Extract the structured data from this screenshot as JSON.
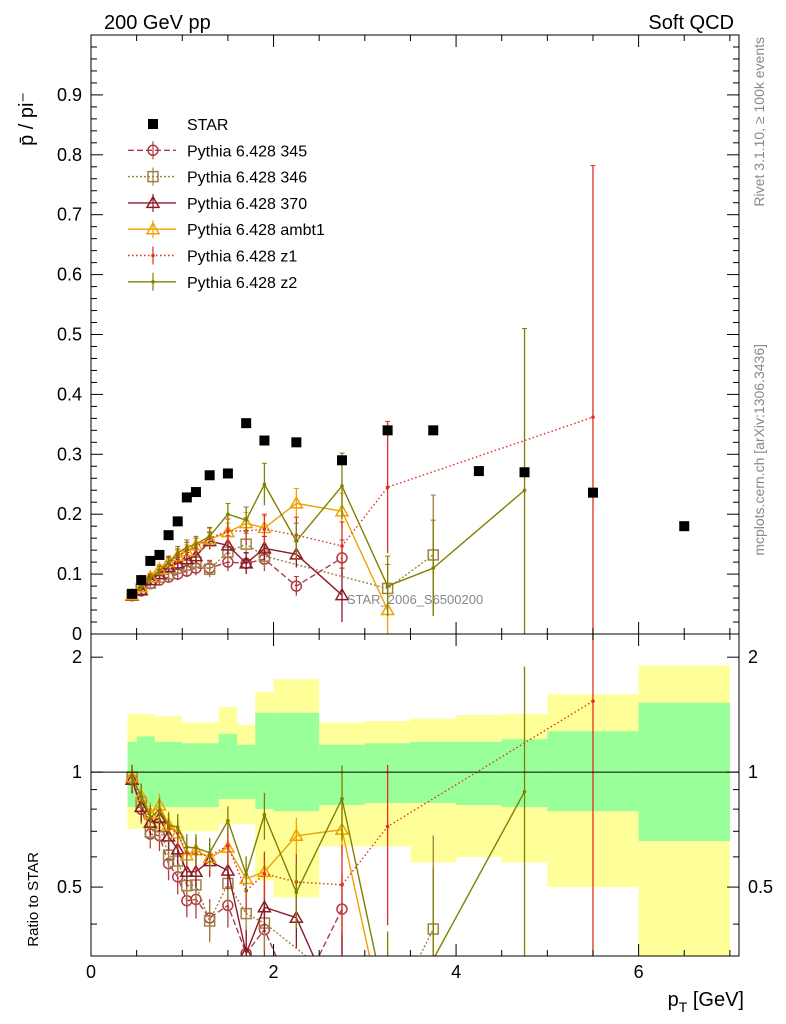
{
  "header": {
    "left": "200 GeV pp",
    "right": "Soft QCD"
  },
  "side_text": {
    "rivet": "Rivet 3.1.10, ≥ 100k events",
    "mcplots": "mcplots.cern.ch [arXiv:1306.3436]"
  },
  "watermark": "STAR_2006_S6500200",
  "axes": {
    "ylabel_top": "p̄ / pi⁻",
    "ylabel_bottom": "Ratio to STAR",
    "xlabel": "p_T [GeV]",
    "x_ticks": [
      "0",
      "2",
      "4",
      "6"
    ],
    "y_ticks_top": [
      "0",
      "0.1",
      "0.2",
      "0.3",
      "0.4",
      "0.5",
      "0.6",
      "0.7",
      "0.8",
      "0.9"
    ],
    "y_ticks_bottom": [
      "0.5",
      "1",
      "2"
    ]
  },
  "colors": {
    "star": "#000000",
    "p345": "#b03a48",
    "p346": "#a08040",
    "p370": "#8b1a2a",
    "ambt1": "#f0a000",
    "z1": "#e03020",
    "z2": "#808000",
    "band_inner": "#99ff99",
    "band_outer": "#ffff99"
  },
  "chart_data": {
    "type": "scatter",
    "xlim": [
      0,
      7.1
    ],
    "ylim_top": [
      0,
      1.0
    ],
    "ylim_bottom": [
      0.33,
      2.3
    ],
    "bottom_log_scale": true,
    "legend_position": "top-left",
    "star": {
      "name": "STAR",
      "x": [
        0.45,
        0.55,
        0.65,
        0.75,
        0.85,
        0.95,
        1.05,
        1.15,
        1.3,
        1.5,
        1.7,
        1.9,
        2.25,
        2.75,
        3.25,
        3.75,
        4.25,
        4.75,
        5.5,
        6.5
      ],
      "y": [
        0.067,
        0.09,
        0.122,
        0.132,
        0.165,
        0.188,
        0.228,
        0.237,
        0.265,
        0.268,
        0.352,
        0.323,
        0.32,
        0.29,
        0.34,
        0.34,
        0.272,
        0.27,
        0.236,
        0.18
      ]
    },
    "bands": [
      {
        "x0": 0.4,
        "x1": 0.5,
        "in_lo": 0.81,
        "in_hi": 1.2,
        "out_lo": 0.71,
        "out_hi": 1.42
      },
      {
        "x0": 0.5,
        "x1": 0.7,
        "in_lo": 0.81,
        "in_hi": 1.24,
        "out_lo": 0.71,
        "out_hi": 1.42
      },
      {
        "x0": 0.7,
        "x1": 1.0,
        "in_lo": 0.81,
        "in_hi": 1.2,
        "out_lo": 0.7,
        "out_hi": 1.4
      },
      {
        "x0": 1.0,
        "x1": 1.4,
        "in_lo": 0.81,
        "in_hi": 1.19,
        "out_lo": 0.7,
        "out_hi": 1.35
      },
      {
        "x0": 1.4,
        "x1": 1.6,
        "in_lo": 0.85,
        "in_hi": 1.26,
        "out_lo": 0.73,
        "out_hi": 1.48
      },
      {
        "x0": 1.6,
        "x1": 1.8,
        "in_lo": 0.85,
        "in_hi": 1.18,
        "out_lo": 0.73,
        "out_hi": 1.33
      },
      {
        "x0": 1.8,
        "x1": 2.0,
        "in_lo": 0.8,
        "in_hi": 1.43,
        "out_lo": 0.52,
        "out_hi": 1.62
      },
      {
        "x0": 2.0,
        "x1": 2.5,
        "in_lo": 0.79,
        "in_hi": 1.43,
        "out_lo": 0.47,
        "out_hi": 1.75
      },
      {
        "x0": 2.5,
        "x1": 3.0,
        "in_lo": 0.82,
        "in_hi": 1.18,
        "out_lo": 0.64,
        "out_hi": 1.35
      },
      {
        "x0": 3.0,
        "x1": 3.5,
        "in_lo": 0.83,
        "in_hi": 1.19,
        "out_lo": 0.64,
        "out_hi": 1.36
      },
      {
        "x0": 3.5,
        "x1": 4.0,
        "in_lo": 0.83,
        "in_hi": 1.2,
        "out_lo": 0.58,
        "out_hi": 1.38
      },
      {
        "x0": 4.0,
        "x1": 4.5,
        "in_lo": 0.82,
        "in_hi": 1.2,
        "out_lo": 0.6,
        "out_hi": 1.41
      },
      {
        "x0": 4.5,
        "x1": 5.0,
        "in_lo": 0.81,
        "in_hi": 1.22,
        "out_lo": 0.58,
        "out_hi": 1.42
      },
      {
        "x0": 5.0,
        "x1": 6.0,
        "in_lo": 0.79,
        "in_hi": 1.28,
        "out_lo": 0.5,
        "out_hi": 1.6
      },
      {
        "x0": 6.0,
        "x1": 7.0,
        "in_lo": 0.66,
        "in_hi": 1.52,
        "out_lo": 0.33,
        "out_hi": 1.9
      }
    ],
    "series": [
      {
        "name": "Pythia 6.428 345",
        "key": "p345",
        "marker": "circle",
        "dash": "6,3",
        "x": [
          0.45,
          0.55,
          0.65,
          0.75,
          0.85,
          0.95,
          1.05,
          1.15,
          1.3,
          1.5,
          1.7,
          1.9,
          2.25,
          2.75
        ],
        "y": [
          0.064,
          0.072,
          0.084,
          0.09,
          0.095,
          0.1,
          0.105,
          0.11,
          0.11,
          0.12,
          0.118,
          0.125,
          0.08,
          0.127
        ],
        "err": [
          0.005,
          0.006,
          0.007,
          0.008,
          0.009,
          0.01,
          0.01,
          0.012,
          0.013,
          0.015,
          0.017,
          0.02,
          0.016,
          0.03
        ]
      },
      {
        "name": "Pythia 6.428 346",
        "key": "p346",
        "marker": "square",
        "dash": "2,2",
        "x": [
          0.45,
          0.55,
          0.65,
          0.75,
          0.85,
          0.95,
          1.05,
          1.15,
          1.3,
          1.5,
          1.7,
          1.9,
          3.25,
          3.75
        ],
        "y": [
          0.065,
          0.075,
          0.085,
          0.095,
          0.1,
          0.11,
          0.115,
          0.12,
          0.108,
          0.137,
          0.15,
          0.13,
          0.076,
          0.132
        ],
        "err": [
          0.005,
          0.006,
          0.007,
          0.008,
          0.009,
          0.01,
          0.011,
          0.012,
          0.013,
          0.015,
          0.018,
          0.02,
          0.04,
          0.1
        ]
      },
      {
        "name": "Pythia 6.428 370",
        "key": "p370",
        "marker": "triangle",
        "dash": "",
        "x": [
          0.45,
          0.55,
          0.65,
          0.75,
          0.85,
          0.95,
          1.05,
          1.15,
          1.3,
          1.5,
          1.7,
          1.9,
          2.25,
          2.75
        ],
        "y": [
          0.064,
          0.073,
          0.09,
          0.1,
          0.112,
          0.118,
          0.125,
          0.13,
          0.155,
          0.148,
          0.118,
          0.143,
          0.133,
          0.065
        ],
        "err": [
          0.005,
          0.006,
          0.007,
          0.008,
          0.009,
          0.01,
          0.011,
          0.012,
          0.014,
          0.016,
          0.018,
          0.02,
          0.022,
          0.045
        ]
      },
      {
        "name": "Pythia 6.428 ambt1",
        "key": "ambt1",
        "marker": "triangle",
        "dash": "",
        "x": [
          0.45,
          0.55,
          0.65,
          0.75,
          0.85,
          0.95,
          1.05,
          1.15,
          1.3,
          1.5,
          1.7,
          1.9,
          2.25,
          2.75,
          3.25
        ],
        "y": [
          0.065,
          0.078,
          0.095,
          0.108,
          0.12,
          0.13,
          0.138,
          0.148,
          0.158,
          0.17,
          0.185,
          0.177,
          0.218,
          0.205,
          0.04
        ],
        "err": [
          0.005,
          0.006,
          0.007,
          0.008,
          0.009,
          0.01,
          0.011,
          0.012,
          0.013,
          0.015,
          0.018,
          0.02,
          0.025,
          0.03,
          0.04
        ]
      },
      {
        "name": "Pythia 6.428 z1",
        "key": "z1",
        "marker": "dot",
        "dash": "1.5,2.5",
        "x": [
          0.45,
          0.55,
          0.65,
          0.75,
          0.85,
          0.95,
          1.05,
          1.15,
          1.3,
          1.5,
          1.7,
          1.9,
          2.25,
          2.75,
          3.25,
          5.5
        ],
        "y": [
          0.065,
          0.078,
          0.092,
          0.105,
          0.118,
          0.13,
          0.14,
          0.145,
          0.16,
          0.172,
          0.172,
          0.175,
          0.165,
          0.147,
          0.245,
          0.362
        ],
        "err": [
          0.005,
          0.006,
          0.007,
          0.008,
          0.01,
          0.012,
          0.013,
          0.015,
          0.017,
          0.02,
          0.022,
          0.025,
          0.03,
          0.04,
          0.11,
          0.42
        ]
      },
      {
        "name": "Pythia 6.428 z2",
        "key": "z2",
        "marker": "dot",
        "dash": "",
        "x": [
          0.45,
          0.55,
          0.65,
          0.75,
          0.85,
          0.95,
          1.05,
          1.15,
          1.3,
          1.5,
          1.7,
          1.9,
          2.25,
          2.75,
          3.25,
          3.75,
          4.75
        ],
        "y": [
          0.065,
          0.078,
          0.093,
          0.105,
          0.12,
          0.135,
          0.145,
          0.15,
          0.163,
          0.2,
          0.19,
          0.25,
          0.155,
          0.247,
          0.08,
          0.11,
          0.24
        ],
        "err": [
          0.005,
          0.006,
          0.007,
          0.008,
          0.01,
          0.011,
          0.012,
          0.013,
          0.015,
          0.018,
          0.022,
          0.035,
          0.03,
          0.055,
          0.05,
          0.08,
          0.27
        ]
      }
    ]
  }
}
